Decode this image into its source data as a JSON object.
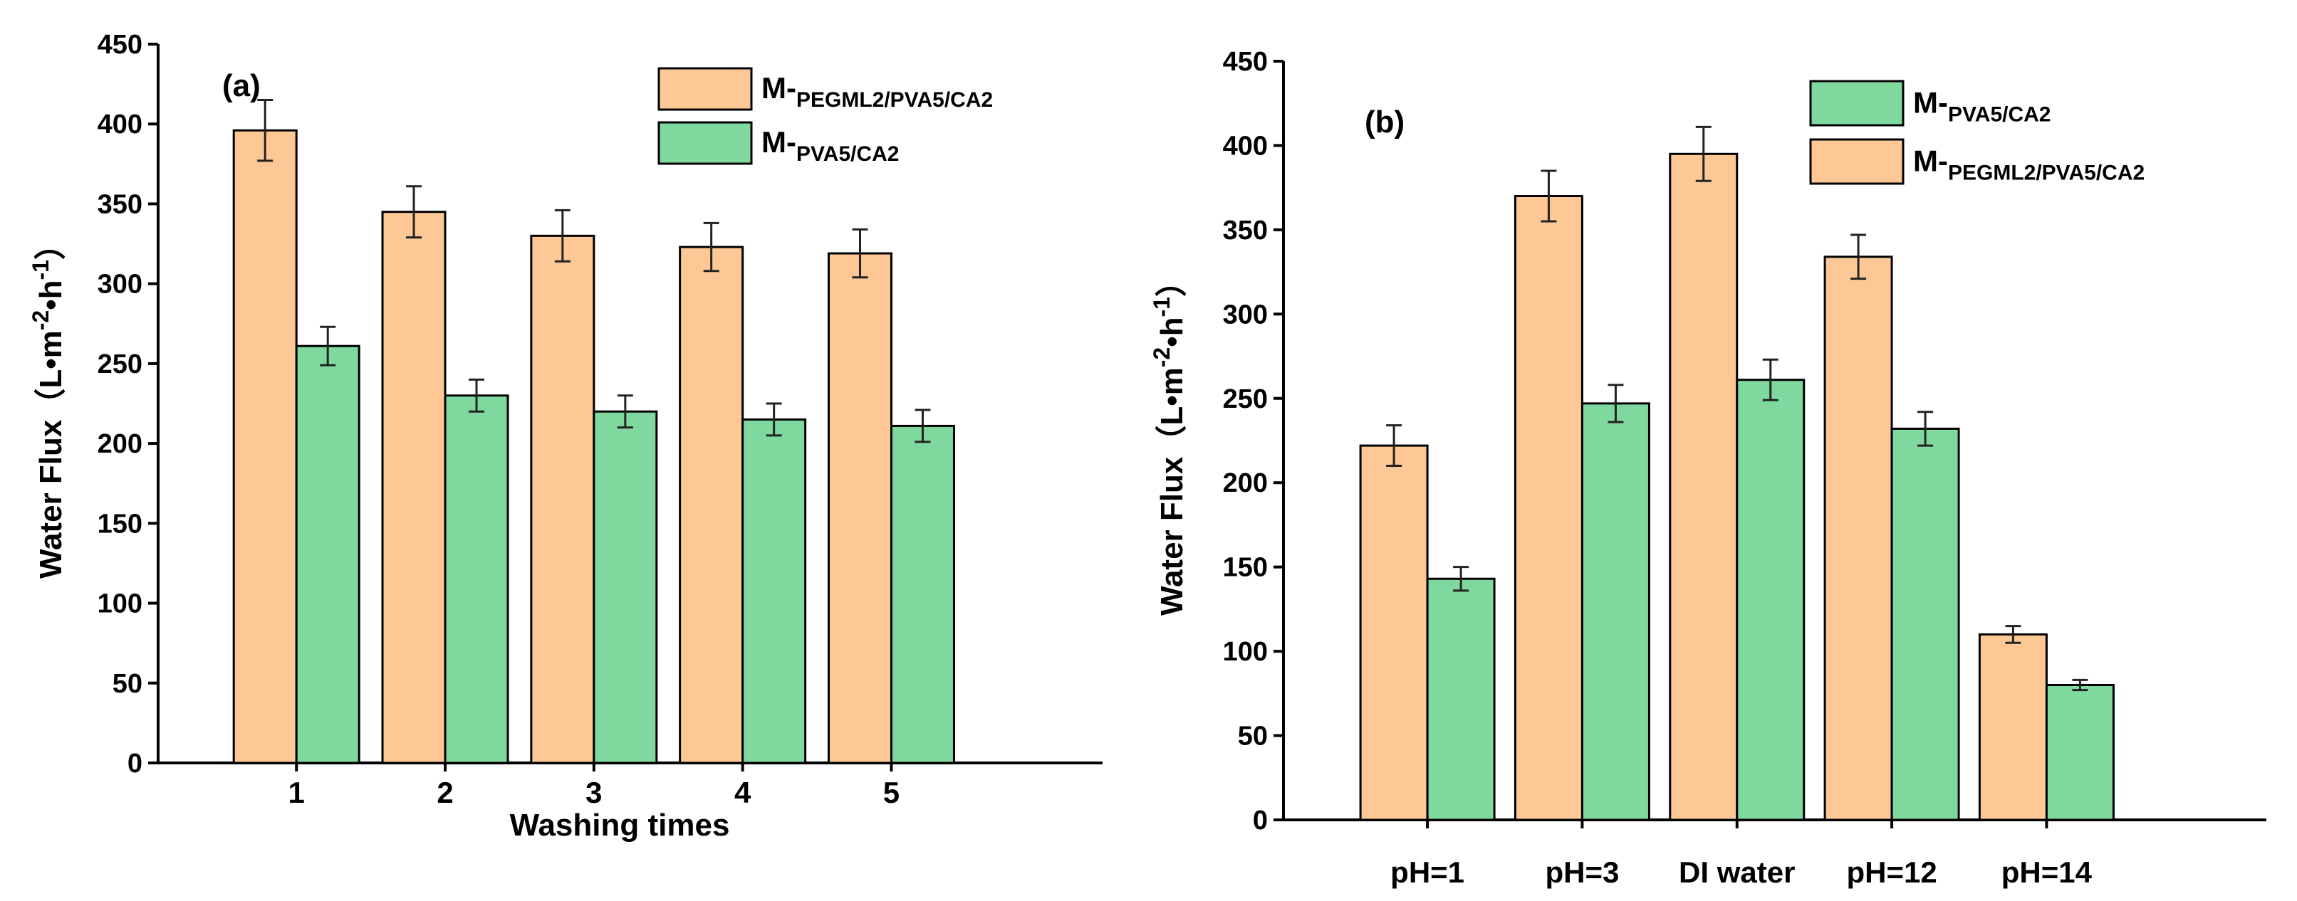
{
  "colors": {
    "orange": "#FDC896",
    "green": "#7FD99E",
    "axis": "#000000"
  },
  "chart_data": [
    {
      "type": "bar",
      "panel_label": "(a)",
      "categories": [
        "1",
        "2",
        "3",
        "4",
        "5"
      ],
      "xlabel": "Washing times",
      "ylabel": "Water Flux（L•m-2•h-1）",
      "ylabel_parts": {
        "main": "Water Flux（L•m",
        "sup1": "-2",
        "mid": "•h",
        "sup2": "-1",
        "end": "）"
      },
      "ylim": [
        0,
        450
      ],
      "yticks": [
        0,
        50,
        100,
        150,
        200,
        250,
        300,
        350,
        400,
        450
      ],
      "legend_position": "top-right",
      "series": [
        {
          "name": "M-PEGML2/PVA5/CA2",
          "name_main": "M-",
          "name_sub": "PEGML2/PVA5/CA2",
          "color": "#FDC896",
          "values": [
            396,
            345,
            330,
            323,
            319
          ],
          "errors": [
            19,
            16,
            16,
            15,
            15
          ]
        },
        {
          "name": "M-PVA5/CA2",
          "name_main": "M-",
          "name_sub": "PVA5/CA2",
          "color": "#7FD99E",
          "values": [
            261,
            230,
            220,
            215,
            211
          ],
          "errors": [
            12,
            10,
            10,
            10,
            10
          ]
        }
      ]
    },
    {
      "type": "bar",
      "panel_label": "(b)",
      "categories": [
        "pH=1",
        "pH=3",
        "DI water",
        "pH=12",
        "pH=14"
      ],
      "xlabel": "",
      "ylabel": "Water Flux（L•m-2•h-1）",
      "ylabel_parts": {
        "main": "Water Flux（L•m",
        "sup1": "-2",
        "mid": "•h",
        "sup2": "-1",
        "end": "）"
      },
      "ylim": [
        0,
        450
      ],
      "yticks": [
        0,
        50,
        100,
        150,
        200,
        250,
        300,
        350,
        400,
        450
      ],
      "legend_position": "top-right",
      "legend_order": [
        1,
        0
      ],
      "series": [
        {
          "name": "M-PEGML2/PVA5/CA2",
          "name_main": "M-",
          "name_sub": "PEGML2/PVA5/CA2",
          "color": "#FDC896",
          "values": [
            222,
            370,
            395,
            334,
            110
          ],
          "errors": [
            12,
            15,
            16,
            13,
            5
          ]
        },
        {
          "name": "M-PVA5/CA2",
          "name_main": "M-",
          "name_sub": "PVA5/CA2",
          "color": "#7FD99E",
          "values": [
            143,
            247,
            261,
            232,
            80
          ],
          "errors": [
            7,
            11,
            12,
            10,
            3
          ]
        }
      ]
    }
  ]
}
